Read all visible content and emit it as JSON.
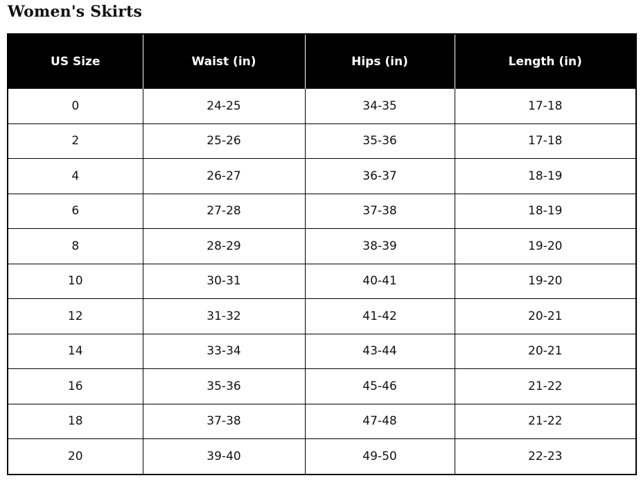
{
  "title": "Women's Skirts",
  "table": {
    "headers": [
      "US Size",
      "Waist (in)",
      "Hips (in)",
      "Length (in)"
    ],
    "rows": [
      [
        "0",
        "24-25",
        "34-35",
        "17-18"
      ],
      [
        "2",
        "25-26",
        "35-36",
        "17-18"
      ],
      [
        "4",
        "26-27",
        "36-37",
        "18-19"
      ],
      [
        "6",
        "27-28",
        "37-38",
        "18-19"
      ],
      [
        "8",
        "28-29",
        "38-39",
        "19-20"
      ],
      [
        "10",
        "30-31",
        "40-41",
        "19-20"
      ],
      [
        "12",
        "31-32",
        "41-42",
        "20-21"
      ],
      [
        "14",
        "33-34",
        "43-44",
        "20-21"
      ],
      [
        "16",
        "35-36",
        "45-46",
        "21-22"
      ],
      [
        "18",
        "37-38",
        "47-48",
        "21-22"
      ],
      [
        "20",
        "39-40",
        "49-50",
        "22-23"
      ]
    ]
  }
}
